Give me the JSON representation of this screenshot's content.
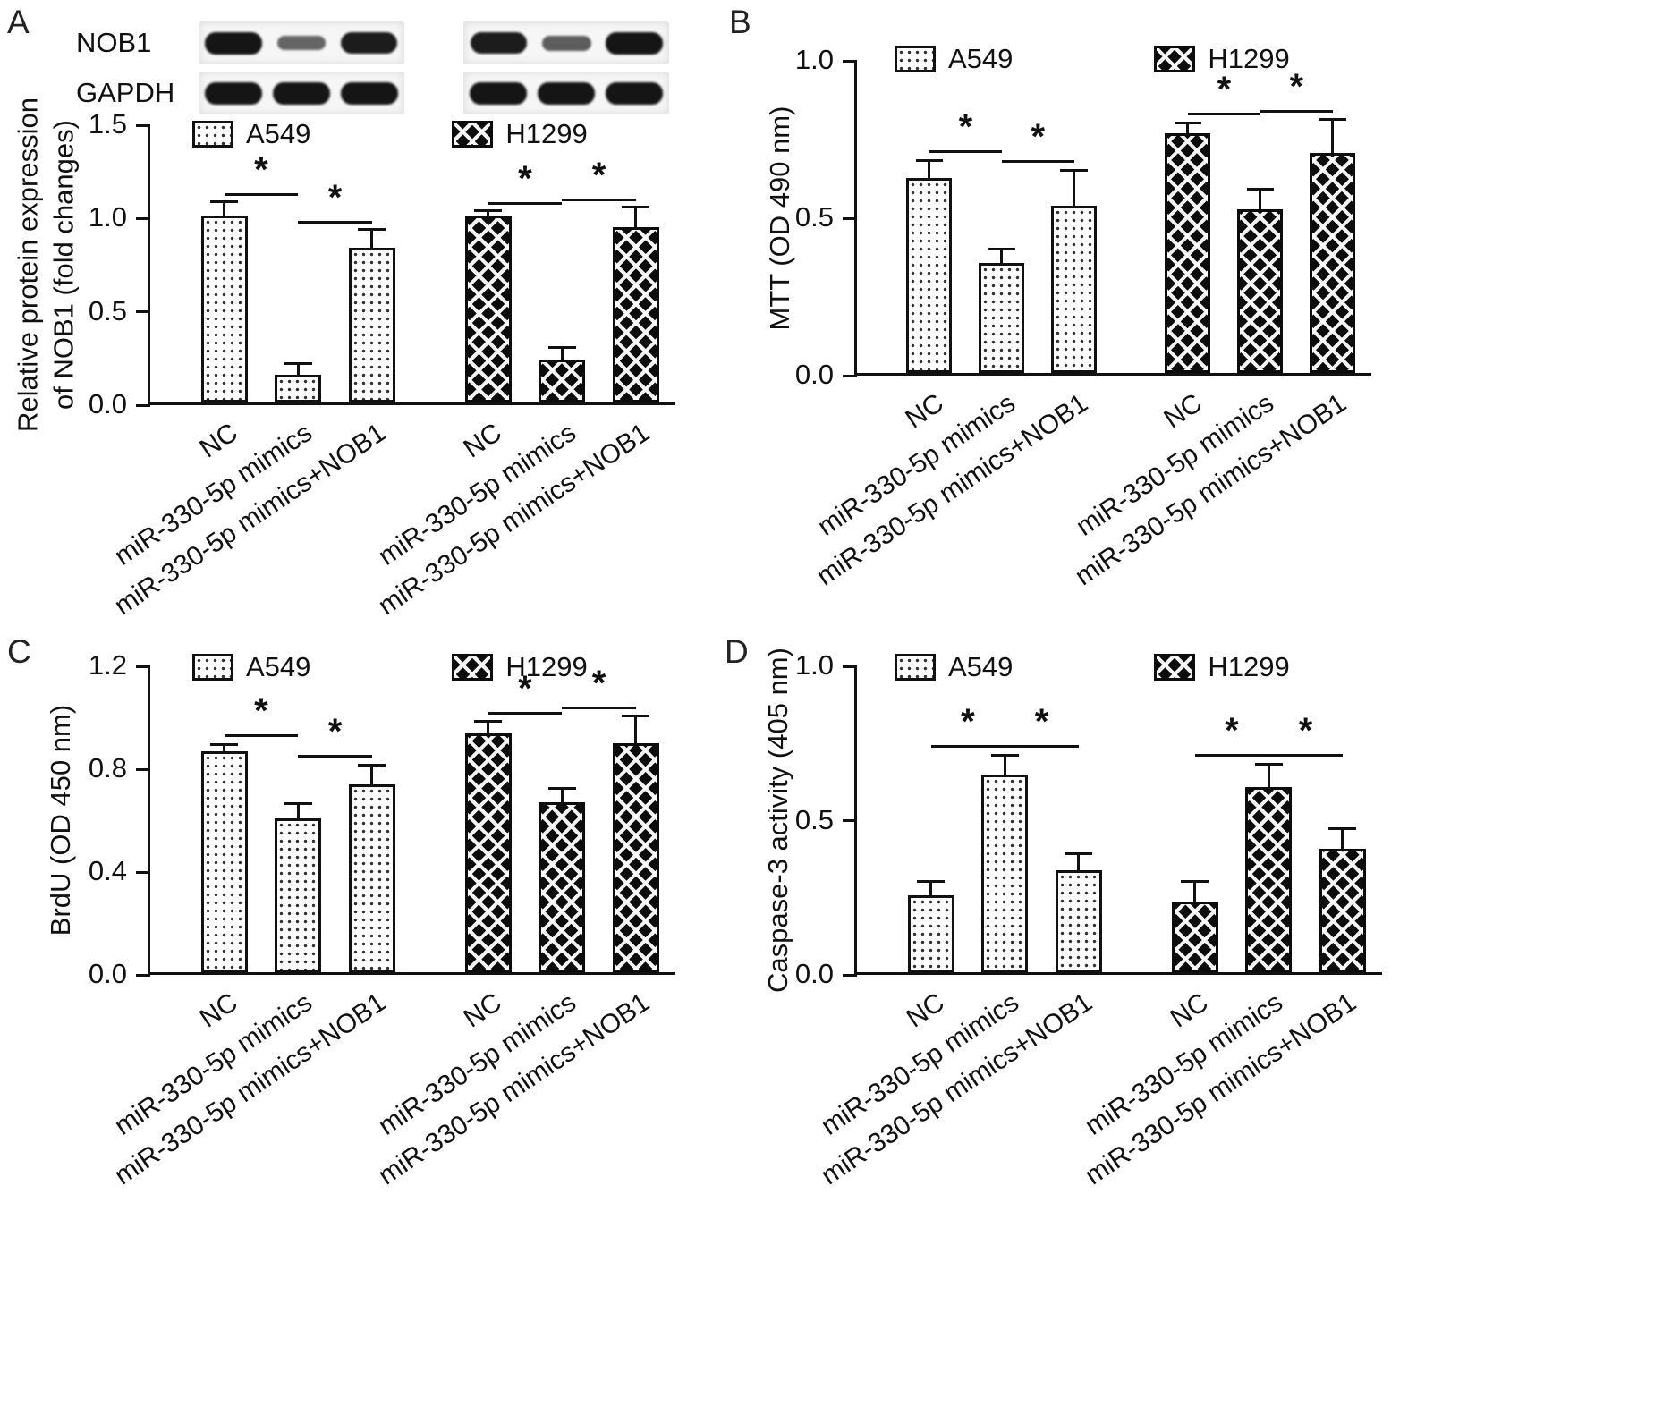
{
  "western_blot": {
    "rows": [
      {
        "label": "NOB1",
        "band_intensities": [
          [
            1,
            0.45,
            0.95
          ],
          [
            0.95,
            0.5,
            1
          ]
        ]
      },
      {
        "label": "GAPDH",
        "band_intensities": [
          [
            1,
            1,
            1
          ],
          [
            1,
            1,
            1
          ]
        ]
      }
    ]
  },
  "chart_data": [
    {
      "type": "bar",
      "panel_letter": "A",
      "ylabel": "Relative protein expression\nof NOB1 (fold changes)",
      "ylim": [
        0,
        1.5
      ],
      "yticks": [
        0,
        0.5,
        1.0,
        1.5
      ],
      "categories": [
        "NC",
        "miR-330-5p mimics",
        "miR-330-5p mimics+NOB1"
      ],
      "series": [
        {
          "name": "A549",
          "values": [
            1.0,
            0.15,
            0.83
          ],
          "errors": [
            0.07,
            0.05,
            0.09
          ]
        },
        {
          "name": "H1299",
          "values": [
            1.0,
            0.23,
            0.94
          ],
          "errors": [
            0.02,
            0.06,
            0.1
          ]
        }
      ],
      "significance": [
        {
          "group": 0,
          "from": 0,
          "to": 1,
          "label": "*"
        },
        {
          "group": 0,
          "from": 1,
          "to": 2,
          "label": "*"
        },
        {
          "group": 1,
          "from": 0,
          "to": 1,
          "label": "*"
        },
        {
          "group": 1,
          "from": 1,
          "to": 2,
          "label": "*"
        }
      ],
      "legend_position": "top"
    },
    {
      "type": "bar",
      "panel_letter": "B",
      "ylabel": "MTT (OD 490 nm)",
      "ylim": [
        0,
        1.0
      ],
      "yticks": [
        0,
        0.5,
        1.0
      ],
      "categories": [
        "NC",
        "miR-330-5p mimics",
        "miR-330-5p mimics+NOB1"
      ],
      "series": [
        {
          "name": "A549",
          "values": [
            0.62,
            0.35,
            0.53
          ],
          "errors": [
            0.05,
            0.04,
            0.11
          ]
        },
        {
          "name": "H1299",
          "values": [
            0.76,
            0.52,
            0.7
          ],
          "errors": [
            0.03,
            0.06,
            0.1
          ]
        }
      ],
      "significance": [
        {
          "group": 0,
          "from": 0,
          "to": 1,
          "label": "*"
        },
        {
          "group": 0,
          "from": 1,
          "to": 2,
          "label": "*"
        },
        {
          "group": 1,
          "from": 0,
          "to": 1,
          "label": "*"
        },
        {
          "group": 1,
          "from": 1,
          "to": 2,
          "label": "*"
        }
      ],
      "legend_position": "top"
    },
    {
      "type": "bar",
      "panel_letter": "C",
      "ylabel": "BrdU (OD 450 nm)",
      "ylim": [
        0,
        1.2
      ],
      "yticks": [
        0,
        0.4,
        0.8,
        1.2
      ],
      "categories": [
        "NC",
        "miR-330-5p mimics",
        "miR-330-5p mimics+NOB1"
      ],
      "series": [
        {
          "name": "A549",
          "values": [
            0.86,
            0.6,
            0.73
          ],
          "errors": [
            0.02,
            0.05,
            0.07
          ]
        },
        {
          "name": "H1299",
          "values": [
            0.93,
            0.66,
            0.89
          ],
          "errors": [
            0.04,
            0.05,
            0.1
          ]
        }
      ],
      "significance": [
        {
          "group": 0,
          "from": 0,
          "to": 1,
          "label": "*"
        },
        {
          "group": 0,
          "from": 1,
          "to": 2,
          "label": "*"
        },
        {
          "group": 1,
          "from": 0,
          "to": 1,
          "label": "*"
        },
        {
          "group": 1,
          "from": 1,
          "to": 2,
          "label": "*"
        }
      ],
      "legend_position": "top"
    },
    {
      "type": "bar",
      "panel_letter": "D",
      "ylabel": "Caspase-3 activity (405 nm)",
      "ylim": [
        0,
        1.0
      ],
      "yticks": [
        0,
        0.5,
        1.0
      ],
      "categories": [
        "NC",
        "miR-330-5p mimics",
        "miR-330-5p mimics+NOB1"
      ],
      "series": [
        {
          "name": "A549",
          "values": [
            0.25,
            0.64,
            0.33
          ],
          "errors": [
            0.04,
            0.06,
            0.05
          ]
        },
        {
          "name": "H1299",
          "values": [
            0.23,
            0.6,
            0.4
          ],
          "errors": [
            0.06,
            0.07,
            0.06
          ]
        }
      ],
      "significance": [
        {
          "group": 0,
          "from": 0,
          "to": 1,
          "label": "*"
        },
        {
          "group": 0,
          "from": 1,
          "to": 2,
          "label": "*"
        },
        {
          "group": 1,
          "from": 0,
          "to": 1,
          "label": "*"
        },
        {
          "group": 1,
          "from": 1,
          "to": 2,
          "label": "*"
        }
      ],
      "legend_position": "top"
    }
  ]
}
